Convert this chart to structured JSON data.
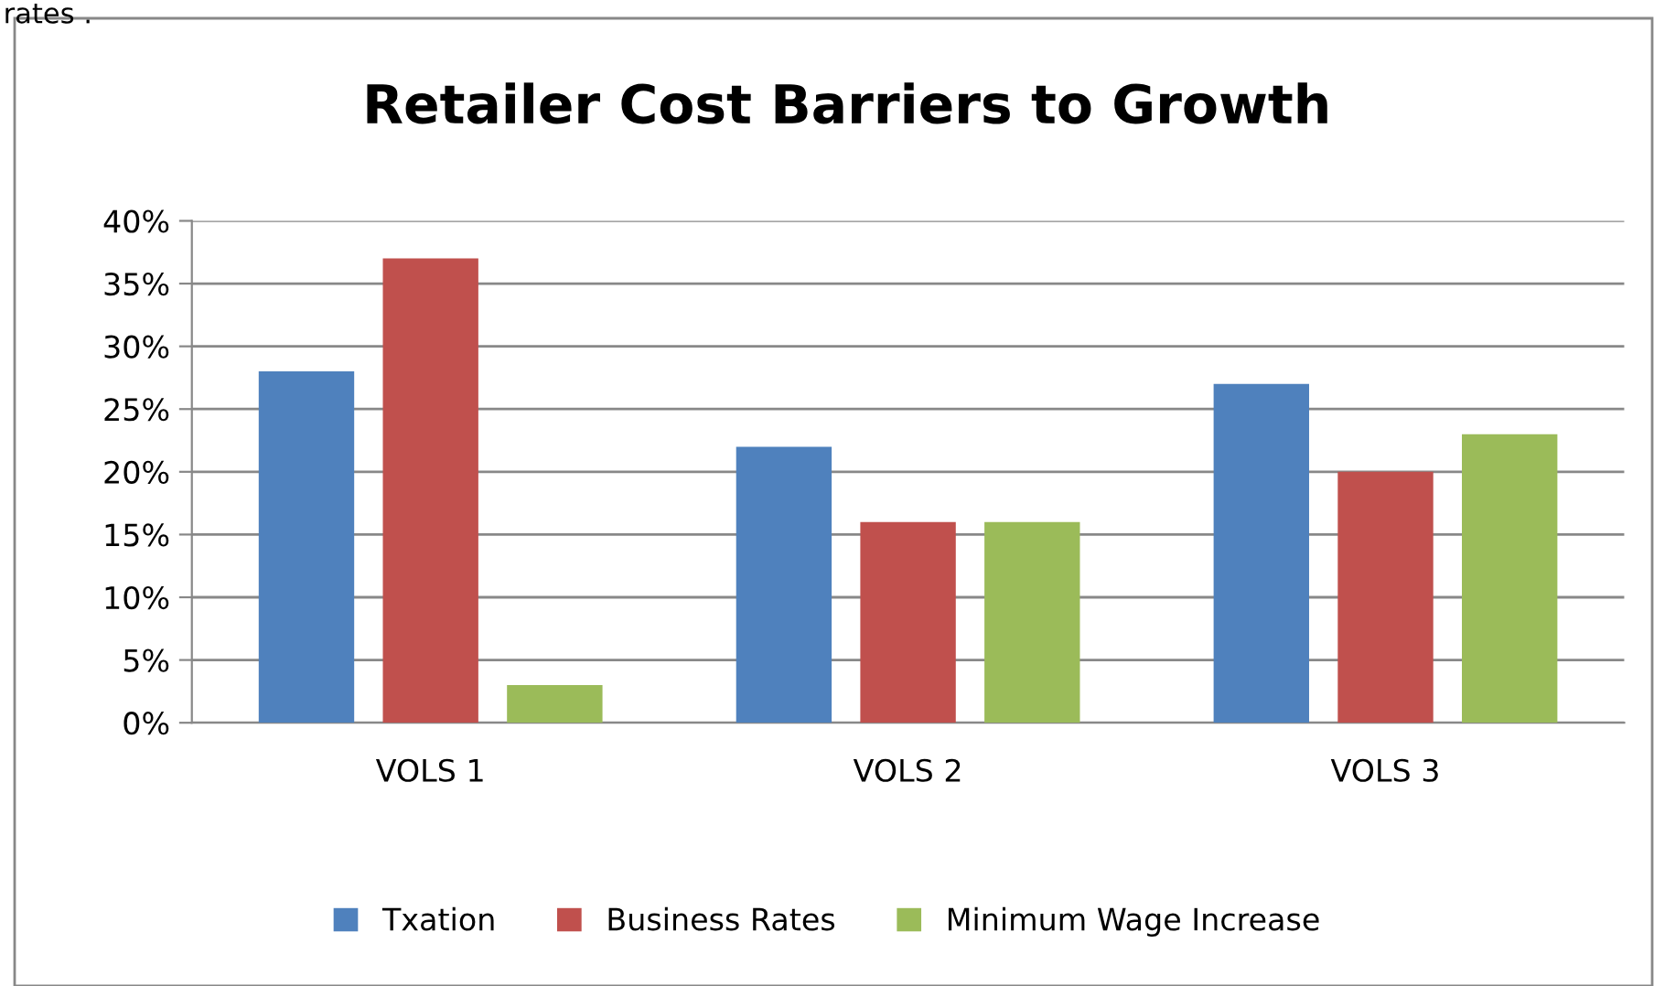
{
  "chart_data": {
    "type": "bar",
    "title": "Retailer Cost Barriers to Growth",
    "categories": [
      "VOLS 1",
      "VOLS 2",
      "VOLS 3"
    ],
    "series": [
      {
        "name": "Txation",
        "color": "#4f81bd",
        "values": [
          28,
          22,
          27
        ]
      },
      {
        "name": "Business Rates",
        "color": "#c0504d",
        "values": [
          37,
          16,
          20
        ]
      },
      {
        "name": "Minimum Wage Increase",
        "color": "#9bbb59",
        "values": [
          3,
          16,
          23
        ]
      }
    ],
    "ylim": [
      0,
      40
    ],
    "yticks": [
      {
        "value": 0,
        "label": "0%"
      },
      {
        "value": 5,
        "label": "5%"
      },
      {
        "value": 10,
        "label": "10%"
      },
      {
        "value": 15,
        "label": "15%"
      },
      {
        "value": 20,
        "label": "20%"
      },
      {
        "value": 25,
        "label": "25%"
      },
      {
        "value": 30,
        "label": "30%"
      },
      {
        "value": 35,
        "label": "35%"
      },
      {
        "value": 40,
        "label": "40%"
      }
    ],
    "grid": "y",
    "legend": "bottom",
    "annotations": [
      "rates ."
    ]
  }
}
